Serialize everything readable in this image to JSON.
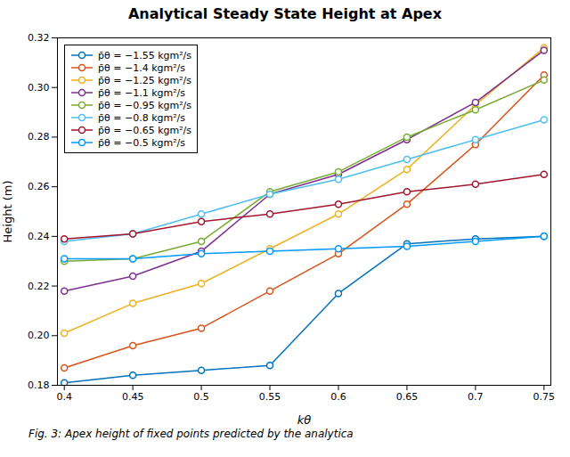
{
  "chart_data": {
    "type": "line",
    "title": "Analytical Steady State Height at Apex",
    "xlabel": "kθ",
    "ylabel": "Height (m)",
    "caption": "Fig. 3: Apex height of fixed points predicted by the analytica",
    "x": [
      0.4,
      0.45,
      0.5,
      0.55,
      0.6,
      0.65,
      0.7,
      0.75
    ],
    "series": [
      {
        "name": "p̄θ = −1.55 kgm²/s",
        "color": "#0072BD",
        "values": [
          0.181,
          0.184,
          0.186,
          0.188,
          0.217,
          0.237,
          0.239,
          0.24
        ]
      },
      {
        "name": "p̄θ = −1.4 kgm²/s",
        "color": "#D95319",
        "values": [
          0.187,
          0.196,
          0.203,
          0.218,
          0.233,
          0.253,
          0.277,
          0.305
        ]
      },
      {
        "name": "p̄θ = −1.25 kgm²/s",
        "color": "#EDB120",
        "values": [
          0.201,
          0.213,
          0.221,
          0.235,
          0.249,
          0.267,
          0.293,
          0.316
        ]
      },
      {
        "name": "p̄θ = −1.1 kgm²/s",
        "color": "#7E2F8E",
        "values": [
          0.218,
          0.224,
          0.234,
          0.257,
          0.265,
          0.279,
          0.294,
          0.315
        ]
      },
      {
        "name": "p̄θ = −0.95 kgm²/s",
        "color": "#77AC30",
        "values": [
          0.23,
          0.231,
          0.238,
          0.258,
          0.266,
          0.28,
          0.291,
          0.303
        ]
      },
      {
        "name": "p̄θ = −0.8 kgm²/s",
        "color": "#4DBEEE",
        "values": [
          0.238,
          0.241,
          0.249,
          0.257,
          0.263,
          0.271,
          0.279,
          0.287
        ]
      },
      {
        "name": "p̄θ = −0.65 kgm²/s",
        "color": "#A2142F",
        "values": [
          0.239,
          0.241,
          0.246,
          0.249,
          0.253,
          0.258,
          0.261,
          0.265
        ]
      },
      {
        "name": "p̄θ = −0.5 kgm²/s",
        "color": "#0099FF",
        "values": [
          0.231,
          0.231,
          0.233,
          0.234,
          0.235,
          0.236,
          0.238,
          0.24
        ]
      }
    ],
    "xlim": [
      0.395,
      0.755
    ],
    "ylim": [
      0.18,
      0.32
    ],
    "xticks": [
      0.4,
      0.45,
      0.5,
      0.55,
      0.6,
      0.65,
      0.7,
      0.75
    ],
    "yticks": [
      0.18,
      {
        "value": 0.2,
        "label": "0.20"
      },
      0.22,
      0.24,
      0.26,
      0.28,
      {
        "value": 0.3,
        "label": "0.30"
      },
      0.32
    ],
    "grid": false,
    "legend": "upper left",
    "marker": "o"
  }
}
